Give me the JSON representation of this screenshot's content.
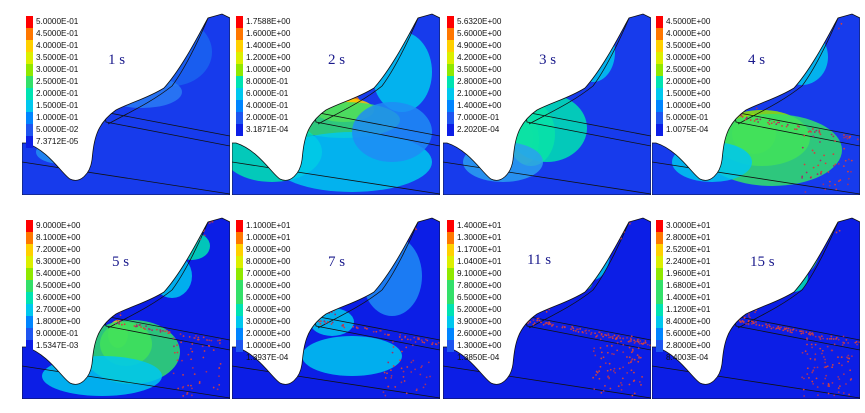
{
  "colors": [
    "#ff0000",
    "#ff7700",
    "#ffd000",
    "#dcef00",
    "#90e800",
    "#33e06a",
    "#00e3b2",
    "#00c8ee",
    "#0085ff",
    "#1e55f0",
    "#0c1ee6"
  ],
  "panels": [
    {
      "time": "1 s",
      "legend": [
        "5.0000E-01",
        "4.5000E-01",
        "4.0000E-01",
        "3.5000E-01",
        "3.0000E-01",
        "2.5000E-01",
        "2.0000E-01",
        "1.5000E-01",
        "1.0000E-01",
        "5.0000E-02",
        "7.3712E-05"
      ]
    },
    {
      "time": "2 s",
      "legend": [
        "1.7588E+00",
        "1.6000E+00",
        "1.4000E+00",
        "1.2000E+00",
        "1.0000E+00",
        "8.0000E-01",
        "6.0000E-01",
        "4.0000E-01",
        "2.0000E-01",
        "3.1871E-04"
      ]
    },
    {
      "time": "3 s",
      "legend": [
        "5.6320E+00",
        "5.6000E+00",
        "4.9000E+00",
        "4.2000E+00",
        "3.5000E+00",
        "2.8000E+00",
        "2.1000E+00",
        "1.4000E+00",
        "7.0000E-01",
        "2.2020E-04"
      ]
    },
    {
      "time": "4 s",
      "legend": [
        "4.5000E+00",
        "4.0000E+00",
        "3.5000E+00",
        "3.0000E+00",
        "2.5000E+00",
        "2.0000E+00",
        "1.5000E+00",
        "1.0000E+00",
        "5.0000E-01",
        "1.0075E-04"
      ]
    },
    {
      "time": "5 s",
      "legend": [
        "9.0000E+00",
        "8.1000E+00",
        "7.2000E+00",
        "6.3000E+00",
        "5.4000E+00",
        "4.5000E+00",
        "3.6000E+00",
        "2.7000E+00",
        "1.8000E+00",
        "9.0000E-01",
        "1.5347E-03"
      ]
    },
    {
      "time": "7 s",
      "legend": [
        "1.1000E+01",
        "1.0000E+01",
        "9.0000E+00",
        "8.0000E+00",
        "7.0000E+00",
        "6.0000E+00",
        "5.0000E+00",
        "4.0000E+00",
        "3.0000E+00",
        "2.0000E+00",
        "1.0000E+00",
        "1.3937E-04"
      ]
    },
    {
      "time": "11 s",
      "legend": [
        "1.4000E+01",
        "1.3000E+01",
        "1.1700E+01",
        "1.0400E+01",
        "9.1000E+00",
        "7.8000E+00",
        "6.5000E+00",
        "5.2000E+00",
        "3.9000E+00",
        "2.6000E+00",
        "1.3000E+00",
        "1.3850E-04"
      ]
    },
    {
      "time": "15 s",
      "legend": [
        "3.0000E+01",
        "2.8000E+01",
        "2.5200E+01",
        "2.2400E+01",
        "1.9600E+01",
        "1.6800E+01",
        "1.4000E+01",
        "1.1200E+01",
        "8.4000E+00",
        "5.6000E+00",
        "2.8000E+00",
        "8.4003E-04"
      ]
    }
  ]
}
